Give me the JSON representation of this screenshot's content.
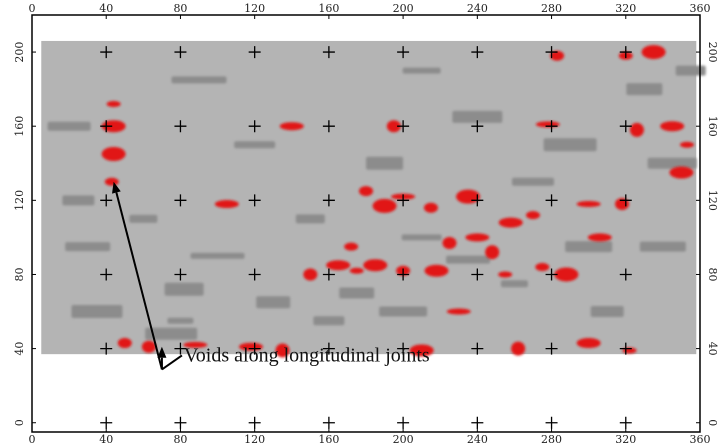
{
  "chart_data": {
    "type": "heatmap",
    "title": "",
    "xlabel": "",
    "ylabel": "",
    "xlim": [
      0,
      360
    ],
    "ylim": [
      -5,
      220
    ],
    "x_ticks": [
      "0",
      "40",
      "80",
      "120",
      "160",
      "200",
      "240",
      "280",
      "320",
      "360"
    ],
    "y_ticks": [
      "0",
      "40",
      "80",
      "120",
      "160",
      "200"
    ],
    "grid": "cross markers at tick intersections",
    "scan_area": {
      "x_range": [
        5,
        358
      ],
      "y_range": [
        37,
        206
      ]
    },
    "colors": {
      "background": "#b4b4b4",
      "medium": "#8c8c8c",
      "void": "#e11414",
      "frame": "#000000"
    },
    "void_regions": [
      {
        "x": 44,
        "y": 172
      },
      {
        "x": 44,
        "y": 160
      },
      {
        "x": 43,
        "y": 130
      },
      {
        "x": 44,
        "y": 145
      },
      {
        "x": 50,
        "y": 43
      },
      {
        "x": 88,
        "y": 42
      },
      {
        "x": 63,
        "y": 41
      },
      {
        "x": 118,
        "y": 41
      },
      {
        "x": 135,
        "y": 39
      },
      {
        "x": 165,
        "y": 85
      },
      {
        "x": 175,
        "y": 82
      },
      {
        "x": 185,
        "y": 85
      },
      {
        "x": 172,
        "y": 95
      },
      {
        "x": 190,
        "y": 117
      },
      {
        "x": 180,
        "y": 125
      },
      {
        "x": 200,
        "y": 122
      },
      {
        "x": 225,
        "y": 97
      },
      {
        "x": 240,
        "y": 100
      },
      {
        "x": 248,
        "y": 92
      },
      {
        "x": 258,
        "y": 108
      },
      {
        "x": 255,
        "y": 80
      },
      {
        "x": 218,
        "y": 82
      },
      {
        "x": 270,
        "y": 112
      },
      {
        "x": 235,
        "y": 122
      },
      {
        "x": 215,
        "y": 116
      },
      {
        "x": 300,
        "y": 118
      },
      {
        "x": 318,
        "y": 118
      },
      {
        "x": 306,
        "y": 100
      },
      {
        "x": 326,
        "y": 158
      },
      {
        "x": 345,
        "y": 160
      },
      {
        "x": 353,
        "y": 150
      },
      {
        "x": 350,
        "y": 135
      },
      {
        "x": 320,
        "y": 198
      },
      {
        "x": 335,
        "y": 200
      },
      {
        "x": 283,
        "y": 198
      },
      {
        "x": 278,
        "y": 161
      },
      {
        "x": 195,
        "y": 160
      },
      {
        "x": 140,
        "y": 160
      },
      {
        "x": 262,
        "y": 40
      },
      {
        "x": 300,
        "y": 43
      },
      {
        "x": 322,
        "y": 39
      },
      {
        "x": 210,
        "y": 39
      },
      {
        "x": 275,
        "y": 84
      },
      {
        "x": 288,
        "y": 80
      },
      {
        "x": 200,
        "y": 82
      },
      {
        "x": 230,
        "y": 60
      },
      {
        "x": 150,
        "y": 80
      },
      {
        "x": 105,
        "y": 118
      }
    ],
    "medium_regions": [
      {
        "x": 80,
        "y": 55
      },
      {
        "x": 82,
        "y": 72
      },
      {
        "x": 75,
        "y": 48
      },
      {
        "x": 175,
        "y": 70
      },
      {
        "x": 200,
        "y": 60
      },
      {
        "x": 160,
        "y": 55
      },
      {
        "x": 235,
        "y": 88
      },
      {
        "x": 260,
        "y": 75
      },
      {
        "x": 210,
        "y": 100
      },
      {
        "x": 290,
        "y": 150
      },
      {
        "x": 330,
        "y": 180
      },
      {
        "x": 345,
        "y": 140
      },
      {
        "x": 25,
        "y": 120
      },
      {
        "x": 30,
        "y": 95
      },
      {
        "x": 60,
        "y": 110
      },
      {
        "x": 120,
        "y": 150
      },
      {
        "x": 100,
        "y": 90
      },
      {
        "x": 190,
        "y": 140
      },
      {
        "x": 240,
        "y": 165
      },
      {
        "x": 310,
        "y": 60
      },
      {
        "x": 340,
        "y": 95
      },
      {
        "x": 150,
        "y": 110
      },
      {
        "x": 270,
        "y": 130
      },
      {
        "x": 90,
        "y": 185
      },
      {
        "x": 210,
        "y": 190
      },
      {
        "x": 35,
        "y": 60
      },
      {
        "x": 130,
        "y": 65
      },
      {
        "x": 300,
        "y": 95
      },
      {
        "x": 355,
        "y": 190
      },
      {
        "x": 20,
        "y": 160
      }
    ],
    "annotation": {
      "text": "Voids along longitudinal joints",
      "anchor": [
        35,
        5
      ],
      "arrow_targets": [
        [
          44,
          130
        ],
        [
          70,
          41
        ]
      ]
    }
  }
}
